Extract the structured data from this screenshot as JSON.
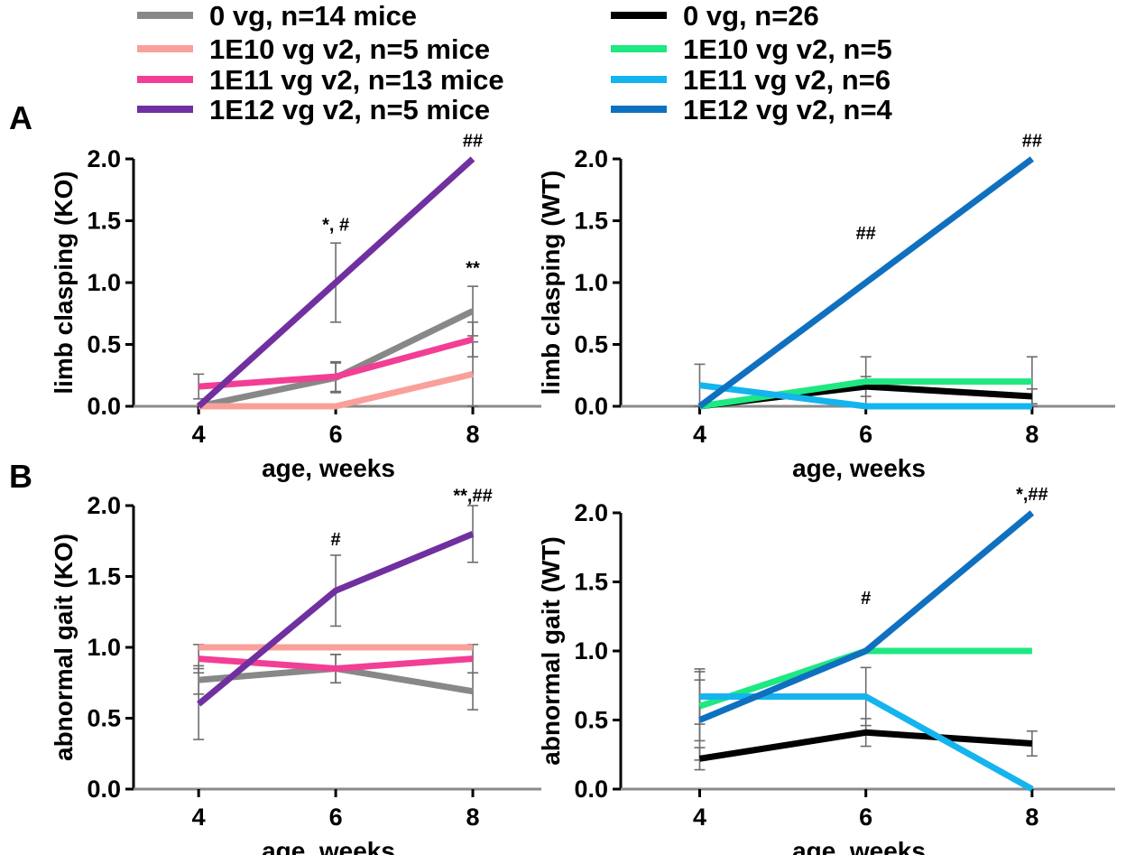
{
  "legend": {
    "left": [
      {
        "label": "0 vg, n=14 mice",
        "color": "#888888"
      },
      {
        "label": "1E10 vg v2, n=5 mice",
        "color": "#f9a09a"
      },
      {
        "label": "1E11 vg v2, n=13 mice",
        "color": "#f23e94"
      },
      {
        "label": "1E12 vg v2, n=5 mice",
        "color": "#7030a0"
      }
    ],
    "right": [
      {
        "label": "0 vg, n=26",
        "color": "#000000"
      },
      {
        "label": "1E10 vg v2, n=5",
        "color": "#1ee882"
      },
      {
        "label": "1E11 vg v2, n=6",
        "color": "#14b4ee"
      },
      {
        "label": "1E12 vg v2, n=4",
        "color": "#1070c0"
      }
    ]
  },
  "panel_labels": {
    "a": "A",
    "b": "B"
  },
  "chart_data": [
    {
      "id": "a-ko",
      "type": "line",
      "xlabel": "age, weeks",
      "ylabel": "limb clasping (KO)",
      "x": [
        4,
        6,
        8
      ],
      "x_ticks": [
        "4",
        "6",
        "8"
      ],
      "xlim": [
        3.05,
        9.0
      ],
      "ylim": [
        0,
        2.0
      ],
      "y_ticks": [
        "0.0",
        "0.5",
        "1.0",
        "1.5",
        "2.0"
      ],
      "series": [
        {
          "name": "0 vg, n=14 mice",
          "color": "#888888",
          "values": [
            0.0,
            0.23,
            0.77
          ],
          "errors": [
            0.0,
            0.12,
            0.2
          ]
        },
        {
          "name": "1E10 vg v2, n=5 mice",
          "color": "#f9a09a",
          "values": [
            0.0,
            0.0,
            0.26
          ],
          "errors": [
            0.0,
            0.0,
            0.26
          ]
        },
        {
          "name": "1E11 vg v2, n=13 mice",
          "color": "#f23e94",
          "values": [
            0.16,
            0.24,
            0.54
          ],
          "errors": [
            0.1,
            0.12,
            0.14
          ]
        },
        {
          "name": "1E12 vg v2, n=5 mice",
          "color": "#7030a0",
          "values": [
            0.0,
            1.0,
            2.0
          ],
          "errors": [
            0.0,
            0.32,
            0.0
          ]
        }
      ],
      "annotations": [
        {
          "text": "*, #",
          "x": 6,
          "y": 1.42
        },
        {
          "text": "**",
          "x": 8,
          "y": 1.07
        },
        {
          "text": "##",
          "x": 8,
          "y": 2.1
        }
      ]
    },
    {
      "id": "a-wt",
      "type": "line",
      "xlabel": "age, weeks",
      "ylabel": "limb clasping (WT)",
      "x": [
        4,
        6,
        8
      ],
      "x_ticks": [
        "4",
        "6",
        "8"
      ],
      "xlim": [
        3.05,
        9.0
      ],
      "ylim": [
        0,
        2.0
      ],
      "y_ticks": [
        "0.0",
        "0.5",
        "1.0",
        "1.5",
        "2.0"
      ],
      "series": [
        {
          "name": "0 vg, n=26",
          "color": "#000000",
          "values": [
            0.0,
            0.16,
            0.08
          ],
          "errors": [
            0.0,
            0.08,
            0.06
          ]
        },
        {
          "name": "1E10 vg v2, n=5",
          "color": "#1ee882",
          "values": [
            0.0,
            0.2,
            0.2
          ],
          "errors": [
            0.0,
            0.2,
            0.2
          ]
        },
        {
          "name": "1E11 vg v2, n=6",
          "color": "#14b4ee",
          "values": [
            0.17,
            0.0,
            0.0
          ],
          "errors": [
            0.17,
            0.0,
            0.0
          ]
        },
        {
          "name": "1E12 vg v2, n=4",
          "color": "#1070c0",
          "values": [
            0.0,
            1.0,
            2.0
          ],
          "errors": [
            0.0,
            0.0,
            0.0
          ]
        }
      ],
      "annotations": [
        {
          "text": "##",
          "x": 6,
          "y": 1.35
        },
        {
          "text": "##",
          "x": 8,
          "y": 2.1
        }
      ]
    },
    {
      "id": "b-ko",
      "type": "line",
      "xlabel": "age, weeks",
      "ylabel": "abnormal gait (KO)",
      "x": [
        4,
        6,
        8
      ],
      "x_ticks": [
        "4",
        "6",
        "8"
      ],
      "xlim": [
        3.05,
        9.0
      ],
      "ylim": [
        0,
        2.0
      ],
      "y_ticks": [
        "0.0",
        "0.5",
        "1.0",
        "1.5",
        "2.0"
      ],
      "series": [
        {
          "name": "0 vg, n=14 mice",
          "color": "#888888",
          "values": [
            0.77,
            0.85,
            0.69
          ],
          "errors": [
            0.1,
            0.1,
            0.13
          ]
        },
        {
          "name": "1E10 vg v2, n=5 mice",
          "color": "#f9a09a",
          "values": [
            1.0,
            1.0,
            1.0
          ],
          "errors": [
            0.0,
            0.0,
            0.0
          ]
        },
        {
          "name": "1E11 vg v2, n=13 mice",
          "color": "#f23e94",
          "values": [
            0.92,
            0.85,
            0.92
          ],
          "errors": [
            0.1,
            0.1,
            0.1
          ]
        },
        {
          "name": "1E12 vg v2, n=5 mice",
          "color": "#7030a0",
          "values": [
            0.6,
            1.4,
            1.8
          ],
          "errors": [
            0.25,
            0.25,
            0.2
          ]
        }
      ],
      "annotations": [
        {
          "text": "#",
          "x": 6,
          "y": 1.72
        },
        {
          "text": "**,##",
          "x": 8,
          "y": 2.03
        }
      ]
    },
    {
      "id": "b-wt",
      "type": "line",
      "xlabel": "age, weeks",
      "ylabel": "abnormal gait (WT)",
      "x": [
        4,
        6,
        8
      ],
      "x_ticks": [
        "4",
        "6",
        "8"
      ],
      "xlim": [
        3.05,
        9.0
      ],
      "ylim": [
        0,
        2.0
      ],
      "y_ticks": [
        "0.0",
        "0.5",
        "1.0",
        "1.5",
        "2.0"
      ],
      "series": [
        {
          "name": "0 vg, n=26",
          "color": "#000000",
          "values": [
            0.22,
            0.41,
            0.33
          ],
          "errors": [
            0.08,
            0.1,
            0.09
          ]
        },
        {
          "name": "1E10 vg v2, n=5",
          "color": "#1ee882",
          "values": [
            0.6,
            1.0,
            1.0
          ],
          "errors": [
            0.25,
            0.0,
            0.0
          ]
        },
        {
          "name": "1E11 vg v2, n=6",
          "color": "#14b4ee",
          "values": [
            0.67,
            0.67,
            0.0
          ],
          "errors": [
            0.2,
            0.21,
            0.0
          ]
        },
        {
          "name": "1E12 vg v2, n=4",
          "color": "#1070c0",
          "values": [
            0.5,
            1.0,
            2.0
          ],
          "errors": [
            0.29,
            0.0,
            0.0
          ]
        }
      ],
      "annotations": [
        {
          "text": "#",
          "x": 6,
          "y": 1.34
        },
        {
          "text": "*,##",
          "x": 8,
          "y": 2.09
        }
      ]
    }
  ]
}
